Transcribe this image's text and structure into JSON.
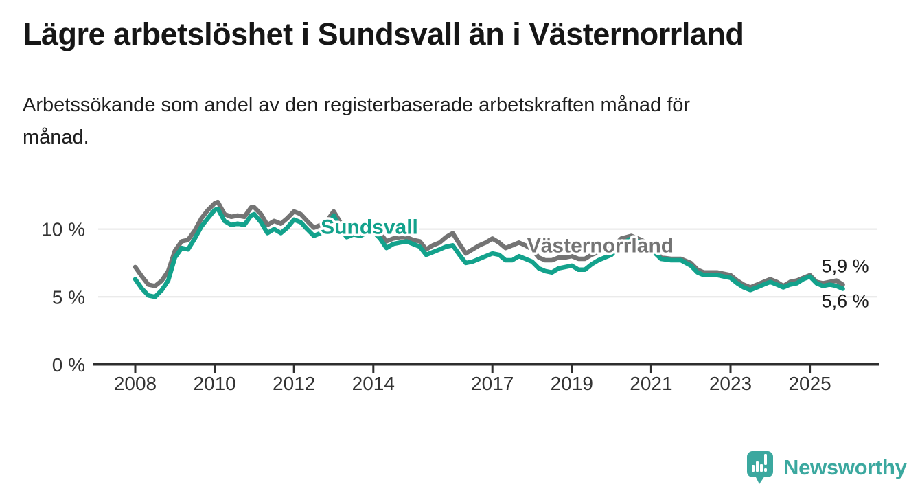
{
  "title": "Lägre arbetslöshet i Sundsvall än i Västernorrland",
  "subtitle": "Arbetssökande som andel av den registerbaserade arbetskraften månad för månad.",
  "subtitle_lines": [
    "Arbetssökande som andel av den registerbaserade arbetskraften månad för",
    "månad."
  ],
  "footer": {
    "brand": "Newsworthy"
  },
  "colors": {
    "sundsvall_line": "#13a28c",
    "vasternorrland_line": "#747474",
    "grid": "#e4e4e4",
    "axis": "#2e2e2e",
    "title_text": "#161616",
    "brand_teal": "#3ba89f"
  },
  "chart_data": {
    "type": "line",
    "unit": "%",
    "grid": true,
    "legend_position": "inline-labels",
    "x_axis": {
      "tick_years": [
        2008,
        2010,
        2012,
        2014,
        2017,
        2019,
        2021,
        2023,
        2025
      ],
      "tick_labels": [
        "2008",
        "2010",
        "2012",
        "2014",
        "2017",
        "2019",
        "2021",
        "2023",
        "2025"
      ],
      "range": [
        2008.0,
        2025.92
      ]
    },
    "y_axis": {
      "ticks": [
        {
          "value": 10,
          "label": "10 %"
        },
        {
          "value": 5,
          "label": "5 %"
        },
        {
          "value": 0,
          "label": "0 %"
        }
      ],
      "range": [
        0,
        12.5
      ]
    },
    "series": [
      {
        "name": "Sundsvall",
        "color": "#13a28c",
        "end_label": "5,6 %",
        "label_pos": {
          "year": 2013.9,
          "value": 10.15
        },
        "points": [
          [
            2008.0,
            6.3
          ],
          [
            2008.17,
            5.6
          ],
          [
            2008.33,
            5.1
          ],
          [
            2008.5,
            5.0
          ],
          [
            2008.67,
            5.5
          ],
          [
            2008.83,
            6.2
          ],
          [
            2009.0,
            7.9
          ],
          [
            2009.17,
            8.6
          ],
          [
            2009.33,
            8.5
          ],
          [
            2009.5,
            9.3
          ],
          [
            2009.67,
            10.2
          ],
          [
            2009.83,
            10.8
          ],
          [
            2010.0,
            11.4
          ],
          [
            2010.08,
            11.5
          ],
          [
            2010.25,
            10.6
          ],
          [
            2010.42,
            10.3
          ],
          [
            2010.58,
            10.4
          ],
          [
            2010.75,
            10.3
          ],
          [
            2010.92,
            11.0
          ],
          [
            2011.0,
            11.1
          ],
          [
            2011.17,
            10.5
          ],
          [
            2011.33,
            9.7
          ],
          [
            2011.5,
            10.0
          ],
          [
            2011.67,
            9.7
          ],
          [
            2011.83,
            10.1
          ],
          [
            2012.0,
            10.7
          ],
          [
            2012.17,
            10.5
          ],
          [
            2012.33,
            10.0
          ],
          [
            2012.5,
            9.5
          ],
          [
            2012.67,
            9.7
          ],
          [
            2012.83,
            10.1
          ],
          [
            2013.0,
            11.0
          ],
          [
            2013.17,
            10.0
          ],
          [
            2013.33,
            9.4
          ],
          [
            2013.5,
            9.6
          ],
          [
            2013.67,
            9.5
          ],
          [
            2013.83,
            9.7
          ],
          [
            2014.0,
            9.8
          ],
          [
            2014.17,
            9.3
          ],
          [
            2014.33,
            8.6
          ],
          [
            2014.5,
            8.9
          ],
          [
            2014.67,
            9.0
          ],
          [
            2014.83,
            9.1
          ],
          [
            2015.0,
            8.9
          ],
          [
            2015.17,
            8.7
          ],
          [
            2015.33,
            8.1
          ],
          [
            2015.5,
            8.3
          ],
          [
            2015.67,
            8.5
          ],
          [
            2015.83,
            8.7
          ],
          [
            2016.0,
            8.8
          ],
          [
            2016.17,
            8.1
          ],
          [
            2016.33,
            7.5
          ],
          [
            2016.5,
            7.6
          ],
          [
            2016.67,
            7.8
          ],
          [
            2016.83,
            8.0
          ],
          [
            2017.0,
            8.2
          ],
          [
            2017.17,
            8.1
          ],
          [
            2017.33,
            7.7
          ],
          [
            2017.5,
            7.7
          ],
          [
            2017.67,
            8.0
          ],
          [
            2017.83,
            7.8
          ],
          [
            2018.0,
            7.6
          ],
          [
            2018.17,
            7.1
          ],
          [
            2018.33,
            6.9
          ],
          [
            2018.5,
            6.8
          ],
          [
            2018.67,
            7.1
          ],
          [
            2018.83,
            7.2
          ],
          [
            2019.0,
            7.3
          ],
          [
            2019.17,
            7.0
          ],
          [
            2019.33,
            7.0
          ],
          [
            2019.5,
            7.4
          ],
          [
            2019.67,
            7.7
          ],
          [
            2019.83,
            7.9
          ],
          [
            2020.0,
            8.1
          ],
          [
            2020.25,
            8.9
          ],
          [
            2020.5,
            9.3
          ],
          [
            2020.75,
            9.0
          ],
          [
            2021.0,
            8.5
          ],
          [
            2021.25,
            7.8
          ],
          [
            2021.5,
            7.7
          ],
          [
            2021.75,
            7.7
          ],
          [
            2022.0,
            7.3
          ],
          [
            2022.17,
            6.8
          ],
          [
            2022.33,
            6.6
          ],
          [
            2022.5,
            6.6
          ],
          [
            2022.67,
            6.6
          ],
          [
            2022.83,
            6.5
          ],
          [
            2023.0,
            6.4
          ],
          [
            2023.17,
            6.0
          ],
          [
            2023.33,
            5.7
          ],
          [
            2023.5,
            5.5
          ],
          [
            2023.67,
            5.7
          ],
          [
            2023.83,
            5.9
          ],
          [
            2024.0,
            6.1
          ],
          [
            2024.17,
            5.9
          ],
          [
            2024.33,
            5.7
          ],
          [
            2024.5,
            5.9
          ],
          [
            2024.67,
            6.0
          ],
          [
            2024.83,
            6.3
          ],
          [
            2025.0,
            6.5
          ],
          [
            2025.17,
            6.0
          ],
          [
            2025.33,
            5.8
          ],
          [
            2025.5,
            5.9
          ],
          [
            2025.67,
            5.8
          ],
          [
            2025.83,
            5.6
          ]
        ]
      },
      {
        "name": "Västernorrland",
        "color": "#747474",
        "end_label": "5,9 %",
        "label_pos": {
          "year": 2019.72,
          "value": 8.8
        },
        "points": [
          [
            2008.0,
            7.2
          ],
          [
            2008.17,
            6.5
          ],
          [
            2008.33,
            5.9
          ],
          [
            2008.5,
            5.8
          ],
          [
            2008.67,
            6.2
          ],
          [
            2008.83,
            6.9
          ],
          [
            2009.0,
            8.4
          ],
          [
            2009.17,
            9.1
          ],
          [
            2009.33,
            9.2
          ],
          [
            2009.5,
            9.9
          ],
          [
            2009.67,
            10.8
          ],
          [
            2009.83,
            11.4
          ],
          [
            2010.0,
            11.9
          ],
          [
            2010.08,
            12.0
          ],
          [
            2010.25,
            11.1
          ],
          [
            2010.42,
            10.9
          ],
          [
            2010.58,
            11.0
          ],
          [
            2010.75,
            10.9
          ],
          [
            2010.92,
            11.6
          ],
          [
            2011.0,
            11.6
          ],
          [
            2011.17,
            11.1
          ],
          [
            2011.33,
            10.3
          ],
          [
            2011.5,
            10.6
          ],
          [
            2011.67,
            10.4
          ],
          [
            2011.83,
            10.8
          ],
          [
            2012.0,
            11.3
          ],
          [
            2012.17,
            11.1
          ],
          [
            2012.33,
            10.6
          ],
          [
            2012.5,
            10.1
          ],
          [
            2012.67,
            10.3
          ],
          [
            2012.83,
            10.6
          ],
          [
            2013.0,
            11.3
          ],
          [
            2013.17,
            10.5
          ],
          [
            2013.33,
            9.9
          ],
          [
            2013.5,
            10.0
          ],
          [
            2013.67,
            10.0
          ],
          [
            2013.83,
            10.1
          ],
          [
            2014.0,
            10.2
          ],
          [
            2014.17,
            9.7
          ],
          [
            2014.33,
            9.1
          ],
          [
            2014.5,
            9.3
          ],
          [
            2014.67,
            9.4
          ],
          [
            2014.83,
            9.4
          ],
          [
            2015.0,
            9.2
          ],
          [
            2015.17,
            9.1
          ],
          [
            2015.33,
            8.5
          ],
          [
            2015.5,
            8.8
          ],
          [
            2015.67,
            9.0
          ],
          [
            2015.83,
            9.4
          ],
          [
            2016.0,
            9.7
          ],
          [
            2016.17,
            8.9
          ],
          [
            2016.33,
            8.2
          ],
          [
            2016.5,
            8.5
          ],
          [
            2016.67,
            8.8
          ],
          [
            2016.83,
            9.0
          ],
          [
            2017.0,
            9.3
          ],
          [
            2017.17,
            9.0
          ],
          [
            2017.33,
            8.6
          ],
          [
            2017.5,
            8.8
          ],
          [
            2017.67,
            9.0
          ],
          [
            2017.83,
            8.8
          ],
          [
            2018.0,
            8.5
          ],
          [
            2018.17,
            7.9
          ],
          [
            2018.33,
            7.7
          ],
          [
            2018.5,
            7.7
          ],
          [
            2018.67,
            7.9
          ],
          [
            2018.83,
            7.9
          ],
          [
            2019.0,
            8.0
          ],
          [
            2019.17,
            7.8
          ],
          [
            2019.33,
            7.8
          ],
          [
            2019.5,
            8.1
          ],
          [
            2019.67,
            8.3
          ],
          [
            2019.83,
            8.5
          ],
          [
            2020.0,
            8.6
          ],
          [
            2020.25,
            9.3
          ],
          [
            2020.5,
            9.5
          ],
          [
            2020.75,
            9.2
          ],
          [
            2021.0,
            8.8
          ],
          [
            2021.25,
            7.9
          ],
          [
            2021.5,
            7.8
          ],
          [
            2021.75,
            7.8
          ],
          [
            2022.0,
            7.5
          ],
          [
            2022.17,
            7.0
          ],
          [
            2022.33,
            6.8
          ],
          [
            2022.5,
            6.8
          ],
          [
            2022.67,
            6.8
          ],
          [
            2022.83,
            6.7
          ],
          [
            2023.0,
            6.6
          ],
          [
            2023.17,
            6.2
          ],
          [
            2023.33,
            5.9
          ],
          [
            2023.5,
            5.7
          ],
          [
            2023.67,
            5.9
          ],
          [
            2023.83,
            6.1
          ],
          [
            2024.0,
            6.3
          ],
          [
            2024.17,
            6.1
          ],
          [
            2024.33,
            5.8
          ],
          [
            2024.5,
            6.1
          ],
          [
            2024.67,
            6.2
          ],
          [
            2024.83,
            6.4
          ],
          [
            2025.0,
            6.6
          ],
          [
            2025.17,
            6.1
          ],
          [
            2025.33,
            6.0
          ],
          [
            2025.5,
            6.1
          ],
          [
            2025.67,
            6.2
          ],
          [
            2025.83,
            5.9
          ]
        ]
      }
    ]
  }
}
